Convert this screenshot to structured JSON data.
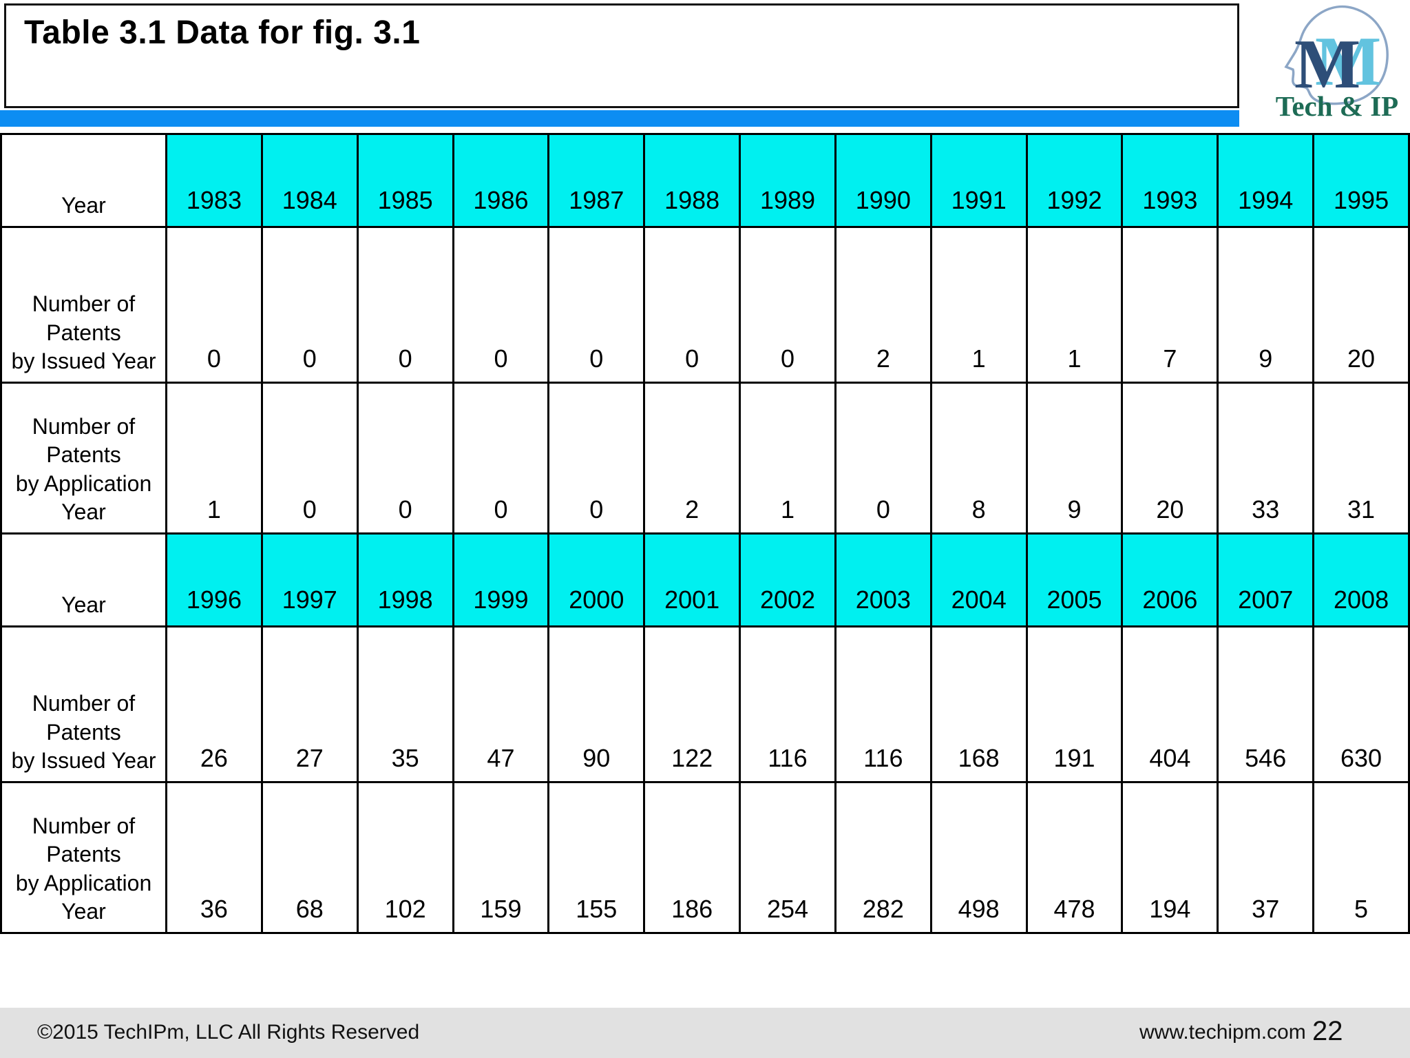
{
  "slide": {
    "title": "Table 3.1 Data for fig. 3.1",
    "logo": {
      "monogram": "M",
      "text": "Tech & IP"
    },
    "footer": {
      "copyright": "©2015 TechIPm, LLC All Rights Reserved",
      "website": "www.techipm.com",
      "page_number": "22"
    }
  },
  "colors": {
    "accent_bar": "#0d8df2",
    "year_header_fill": "#00f0f0",
    "footer_bg": "#e1e1e1",
    "table_border": "#000000",
    "logo_monogram_dark": "#2e4e78",
    "logo_monogram_light": "#62c3df",
    "logo_text_green": "#1d6b55",
    "logo_outline": "#8ca6c6"
  },
  "table": {
    "rows": [
      {
        "type": "year-header",
        "label_lines": [
          "Year"
        ],
        "values": [
          "1983",
          "1984",
          "1985",
          "1986",
          "1987",
          "1988",
          "1989",
          "1990",
          "1991",
          "1992",
          "1993",
          "1994",
          "1995"
        ]
      },
      {
        "type": "data",
        "label_lines": [
          "Number of",
          "Patents",
          "by Issued Year"
        ],
        "values": [
          "0",
          "0",
          "0",
          "0",
          "0",
          "0",
          "0",
          "2",
          "1",
          "1",
          "7",
          "9",
          "20"
        ]
      },
      {
        "type": "data",
        "label_lines": [
          "Number of",
          "Patents",
          "by Application",
          "Year"
        ],
        "values": [
          "1",
          "0",
          "0",
          "0",
          "0",
          "2",
          "1",
          "0",
          "8",
          "9",
          "20",
          "33",
          "31"
        ]
      },
      {
        "type": "year-header",
        "label_lines": [
          "Year"
        ],
        "values": [
          "1996",
          "1997",
          "1998",
          "1999",
          "2000",
          "2001",
          "2002",
          "2003",
          "2004",
          "2005",
          "2006",
          "2007",
          "2008"
        ]
      },
      {
        "type": "data",
        "label_lines": [
          "Number of",
          "Patents",
          "by Issued Year"
        ],
        "values": [
          "26",
          "27",
          "35",
          "47",
          "90",
          "122",
          "116",
          "116",
          "168",
          "191",
          "404",
          "546",
          "630"
        ]
      },
      {
        "type": "data",
        "label_lines": [
          "Number of",
          "Patents",
          "by Application",
          "Year"
        ],
        "values": [
          "36",
          "68",
          "102",
          "159",
          "155",
          "186",
          "254",
          "282",
          "498",
          "478",
          "194",
          "37",
          "5"
        ]
      }
    ]
  },
  "chart_data": {
    "type": "table",
    "title": "Table 3.1 Data for fig. 3.1",
    "row_label_header": "Year",
    "series_labels": [
      "Number of Patents by Issued Year",
      "Number of Patents by Application Year"
    ],
    "blocks": [
      {
        "years": [
          1983,
          1984,
          1985,
          1986,
          1987,
          1988,
          1989,
          1990,
          1991,
          1992,
          1993,
          1994,
          1995
        ],
        "patents_by_issued_year": [
          0,
          0,
          0,
          0,
          0,
          0,
          0,
          2,
          1,
          1,
          7,
          9,
          20
        ],
        "patents_by_application_year": [
          1,
          0,
          0,
          0,
          0,
          2,
          1,
          0,
          8,
          9,
          20,
          33,
          31
        ]
      },
      {
        "years": [
          1996,
          1997,
          1998,
          1999,
          2000,
          2001,
          2002,
          2003,
          2004,
          2005,
          2006,
          2007,
          2008
        ],
        "patents_by_issued_year": [
          26,
          27,
          35,
          47,
          90,
          122,
          116,
          116,
          168,
          191,
          404,
          546,
          630
        ],
        "patents_by_application_year": [
          36,
          68,
          102,
          159,
          155,
          186,
          254,
          282,
          498,
          478,
          194,
          37,
          5
        ]
      }
    ]
  }
}
